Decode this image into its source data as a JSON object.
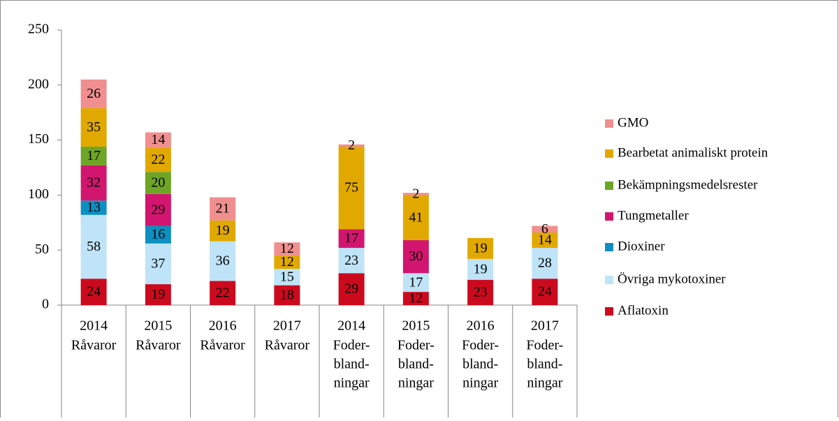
{
  "chart_data": {
    "type": "stacked_bar",
    "categories": [
      "2014",
      "2015",
      "2016",
      "2017",
      "2014",
      "2015",
      "2016",
      "2017"
    ],
    "category_groups": [
      [
        "Råvaror"
      ],
      [
        "Råvaror"
      ],
      [
        "Råvaror"
      ],
      [
        "Råvaror"
      ],
      [
        "Foder-",
        "bland-",
        "ningar"
      ],
      [
        "Foder-",
        "bland-",
        "ningar"
      ],
      [
        "Foder-",
        "bland-",
        "ningar"
      ],
      [
        "Foder-",
        "bland-",
        "ningar"
      ]
    ],
    "series": [
      {
        "name": "Aflatoxin",
        "color": "#cc0a1e",
        "values": [
          24,
          19,
          22,
          18,
          29,
          12,
          23,
          24
        ]
      },
      {
        "name": "Övriga mykotoxiner",
        "color": "#bfe3f7",
        "values": [
          58,
          37,
          36,
          15,
          23,
          17,
          19,
          28
        ]
      },
      {
        "name": "Dioxiner",
        "color": "#0e8fc0",
        "values": [
          13,
          16,
          null,
          null,
          null,
          null,
          null,
          null
        ]
      },
      {
        "name": "Tungmetaller",
        "color": "#d2166f",
        "values": [
          32,
          29,
          null,
          null,
          17,
          30,
          null,
          null
        ]
      },
      {
        "name": "Bekämpningsmedelsrester",
        "color": "#6fa526",
        "values": [
          17,
          20,
          null,
          null,
          null,
          null,
          null,
          null
        ]
      },
      {
        "name": "Bearbetat animaliskt protein",
        "color": "#e1a900",
        "values": [
          35,
          22,
          19,
          12,
          75,
          41,
          19,
          14
        ]
      },
      {
        "name": "GMO",
        "color": "#f08f8f",
        "values": [
          26,
          14,
          21,
          12,
          2,
          2,
          null,
          6
        ]
      }
    ],
    "ylim": [
      0,
      250
    ],
    "yticks": [
      0,
      50,
      100,
      150,
      200,
      250
    ],
    "legend": "right"
  }
}
